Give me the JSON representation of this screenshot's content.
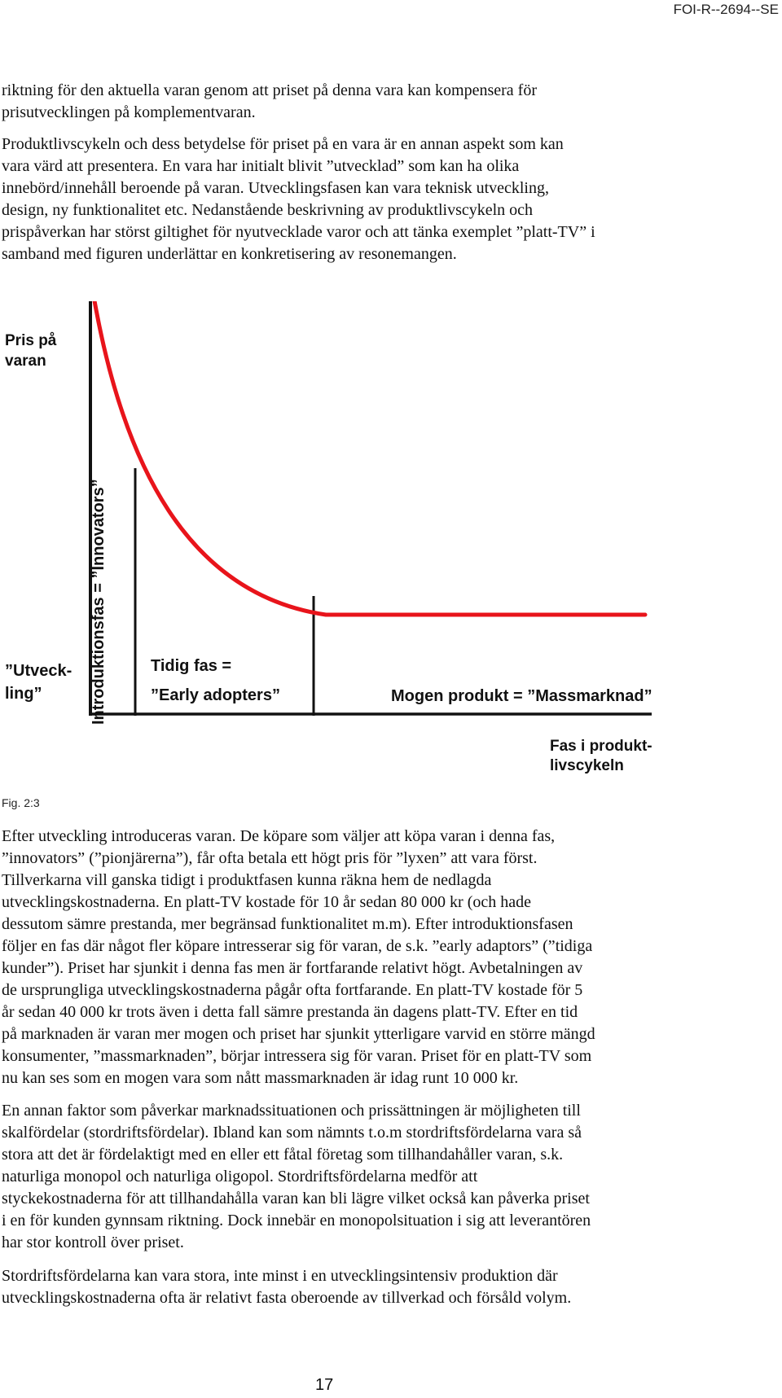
{
  "header": {
    "doc_id": "FOI-R--2694--SE"
  },
  "paragraphs_top": {
    "p1": [
      "riktning för den aktuella varan genom att priset på denna vara kan kompensera för",
      "prisutvecklingen på komplementvaran."
    ],
    "p2": [
      "Produktlivscykeln och dess betydelse för priset på en vara är en annan aspekt som kan",
      "vara värd att presentera. En vara har initialt blivit ”utvecklad” som kan ha olika",
      "innebörd/innehåll beroende på varan. Utvecklingsfasen kan vara teknisk utveckling,",
      "design, ny funktionalitet etc. Nedanstående beskrivning av produktlivscykeln och",
      "prispåverkan har störst giltighet för nyutvecklade varor och att tänka exemplet ”platt-TV” i",
      "samband med figuren underlättar en konkretisering av resonemangen."
    ]
  },
  "figure": {
    "price_label_1": "Pris på",
    "price_label_2": "varan",
    "dev_label_1": "”Utveck-",
    "dev_label_2": "ling”",
    "intro_label": "Introduktionsfas = ”Innovators”",
    "early_label_1": "Tidig fas =",
    "early_label_2": "”Early adopters”",
    "mature_label": "Mogen produkt = ”Massmarknad”",
    "phase_label_1": "Fas i produkt-",
    "phase_label_2": "livscykeln",
    "caption": "Fig. 2:3",
    "colors": {
      "curve": "#e8141b",
      "axis": "#111111"
    }
  },
  "paragraphs_bottom": {
    "p3": [
      "Efter utveckling introduceras varan. De köpare som väljer att köpa varan i denna fas,",
      "”innovators” (”pionjärerna”), får ofta betala ett högt pris för ”lyxen” att vara först.",
      "Tillverkarna vill ganska tidigt i produktfasen kunna räkna hem de nedlagda",
      "utvecklingskostnaderna. En platt-TV kostade för 10 år sedan 80 000 kr (och hade",
      "dessutom sämre prestanda, mer begränsad funktionalitet m.m). Efter introduktionsfasen",
      "följer en fas där något fler köpare intresserar sig för varan, de s.k. ”early adaptors” (”tidiga",
      "kunder”). Priset har sjunkit i denna fas men är fortfarande relativt högt. Avbetalningen av",
      "de ursprungliga utvecklingskostnaderna pågår ofta fortfarande. En platt-TV kostade för 5",
      "år sedan 40 000 kr trots även i detta fall sämre prestanda än dagens platt-TV. Efter en tid",
      "på marknaden är varan mer mogen och priset har sjunkit ytterligare varvid en större mängd",
      "konsumenter, ”massmarknaden”, börjar intressera sig för varan. Priset för en platt-TV som",
      "nu kan ses som en mogen vara som nått massmarknaden är idag runt 10 000 kr."
    ],
    "p4": [
      "En annan faktor som påverkar marknadssituationen och prissättningen är möjligheten till",
      "skalfördelar (stordriftsfördelar). Ibland kan som nämnts t.o.m stordriftsfördelarna vara så",
      "stora att det är fördelaktigt med en eller ett fåtal företag som tillhandahåller varan, s.k.",
      "naturliga monopol och naturliga oligopol. Stordriftsfördelarna medför att",
      "styckekostnaderna för att tillhandahålla varan kan bli lägre vilket också kan påverka priset",
      "i en för kunden gynnsam riktning. Dock innebär en monopolsituation i sig att leverantören",
      "har stor kontroll över priset."
    ],
    "p5": [
      "Stordriftsfördelarna kan vara stora, inte minst i en utvecklingsintensiv produktion där",
      "utvecklingskostnaderna ofta är relativt fasta oberoende av tillverkad och försåld volym."
    ]
  },
  "footer": {
    "page_number": "17"
  }
}
